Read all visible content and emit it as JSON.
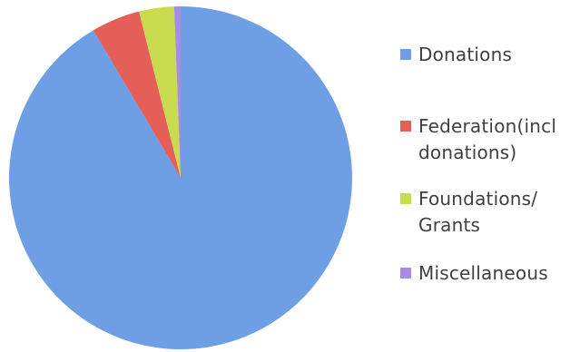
{
  "chart_data": {
    "type": "pie",
    "title": "",
    "start_angle_deg": 0,
    "direction": "clockwise",
    "slices": [
      {
        "label": "Donations",
        "value": 91.5,
        "color": "#6e9ee3"
      },
      {
        "label": "Federation(incl\ndonations)",
        "value": 4.6,
        "color": "#e35f58"
      },
      {
        "label": "Foundations/\nGrants",
        "value": 3.3,
        "color": "#c9dc4f"
      },
      {
        "label": "Miscellaneous",
        "value": 0.6,
        "color": "#a58de6"
      }
    ],
    "legend_position": "right"
  }
}
